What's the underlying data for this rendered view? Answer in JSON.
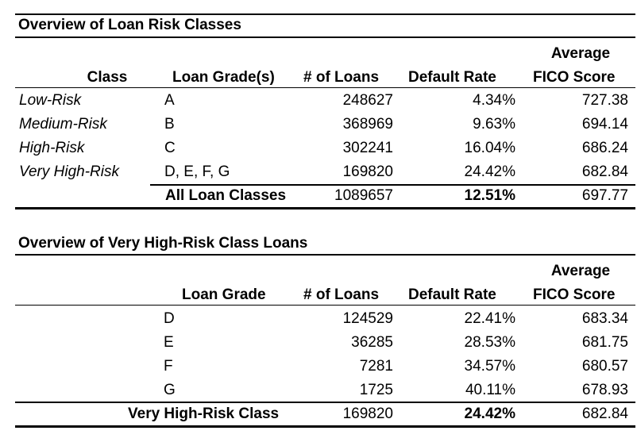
{
  "table1": {
    "title": "Overview of Loan Risk Classes",
    "headers": {
      "class": "Class",
      "grade": "Loan Grade(s)",
      "loans": "# of Loans",
      "default": "Default Rate",
      "fico_top": "Average",
      "fico_bottom": "FICO Score"
    },
    "rows": [
      {
        "class": "Low-Risk",
        "grade": "A",
        "loans": "248627",
        "default": "4.34%",
        "fico": "727.38"
      },
      {
        "class": "Medium-Risk",
        "grade": "B",
        "loans": "368969",
        "default": "9.63%",
        "fico": "694.14"
      },
      {
        "class": "High-Risk",
        "grade": "C",
        "loans": "302241",
        "default": "16.04%",
        "fico": "686.24"
      },
      {
        "class": "Very High-Risk",
        "grade": "D, E, F, G",
        "loans": "169820",
        "default": "24.42%",
        "fico": "682.84"
      }
    ],
    "total": {
      "label": "All Loan Classes",
      "loans": "1089657",
      "default": "12.51%",
      "fico": "697.77"
    }
  },
  "table2": {
    "title": "Overview of Very High-Risk Class Loans",
    "headers": {
      "grade": "Loan Grade",
      "loans": "# of Loans",
      "default": "Default Rate",
      "fico_top": "Average",
      "fico_bottom": "FICO Score"
    },
    "rows": [
      {
        "grade": "D",
        "loans": "124529",
        "default": "22.41%",
        "fico": "683.34"
      },
      {
        "grade": "E",
        "loans": "36285",
        "default": "28.53%",
        "fico": "681.75"
      },
      {
        "grade": "F",
        "loans": "7281",
        "default": "34.57%",
        "fico": "680.57"
      },
      {
        "grade": "G",
        "loans": "1725",
        "default": "40.11%",
        "fico": "678.93"
      }
    ],
    "total": {
      "label": "Very High-Risk Class",
      "loans": "169820",
      "default": "24.42%",
      "fico": "682.84"
    }
  }
}
